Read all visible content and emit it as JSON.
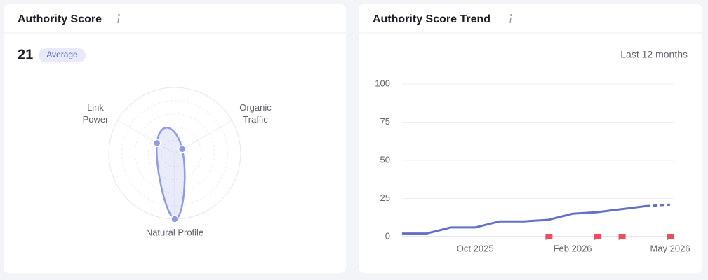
{
  "chart_data": [
    {
      "type": "radar",
      "title": "Authority Score",
      "score": 21,
      "score_label": "Average",
      "categories": [
        [
          "Link",
          "Power"
        ],
        [
          "Organic",
          "Traffic"
        ],
        [
          "Natural Profile"
        ]
      ],
      "values": [
        31,
        13,
        100
      ],
      "rlim": [
        0,
        100
      ],
      "rings": 5,
      "color": "#8f9be6"
    },
    {
      "type": "line",
      "title": "Authority Score Trend",
      "subtitle": "Last 12 months",
      "categories": [
        null,
        null,
        null,
        "Oct 2025",
        null,
        null,
        null,
        "Feb 2026",
        null,
        null,
        null,
        "May 2026"
      ],
      "values": [
        2,
        2,
        6,
        6,
        10,
        10,
        11,
        15,
        16,
        18,
        20,
        21
      ],
      "dashed_from": 10,
      "flags": [
        6,
        8,
        9,
        11
      ],
      "flag_color": "#f04b5c",
      "ylim": [
        0,
        100
      ],
      "yticks": [
        0,
        25,
        50,
        75,
        100
      ],
      "grid": true,
      "color": "#6470c8"
    }
  ]
}
